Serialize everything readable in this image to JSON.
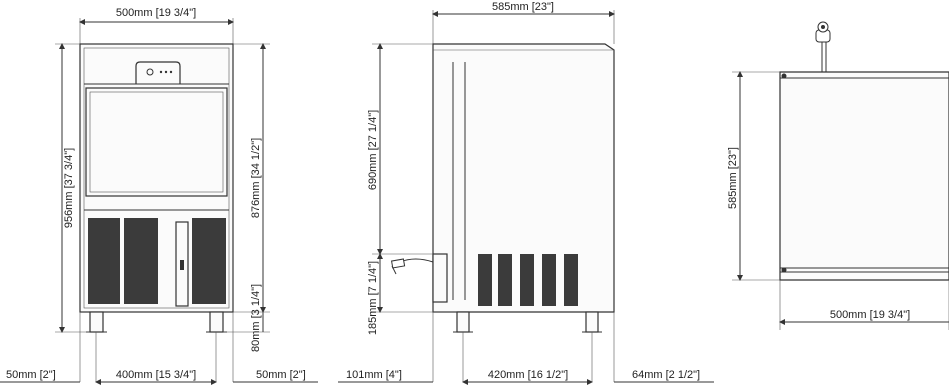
{
  "front_view": {
    "width_label": "500mm [19 3/4\"]",
    "height_label": "956mm [37 3/4\"]",
    "inner_height_label": "876mm [34 1/2\"]",
    "leg_height_label": "80mm [3 1/4\"]",
    "left_offset_label": "50mm [2\"]",
    "leg_spacing_label": "400mm [15 3/4\"]",
    "right_offset_label": "50mm [2\"]"
  },
  "side_view": {
    "depth_label": "585mm [23\"]",
    "upper_height_label": "690mm [27 1/4\"]",
    "lower_height_label": "185mm [7 1/4\"]",
    "back_offset_label": "101mm [4\"]",
    "leg_spacing_label": "420mm [16 1/2\"]",
    "front_offset_label": "64mm [2 1/2\"]"
  },
  "top_view": {
    "depth_label": "585mm [23\"]",
    "width_label": "500mm [19 3/4\"]"
  }
}
